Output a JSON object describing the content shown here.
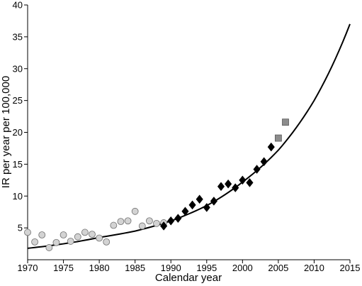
{
  "chart_data": {
    "type": "scatter",
    "xlabel": "Calendar year",
    "ylabel": "IR per year per 100,000",
    "xlim": [
      1970,
      2015
    ],
    "ylim": [
      0,
      40
    ],
    "x_ticks": [
      1970,
      1975,
      1980,
      1985,
      1990,
      1995,
      2000,
      2005,
      2010,
      2015
    ],
    "y_ticks": [
      5,
      10,
      15,
      20,
      25,
      30,
      35,
      40
    ],
    "grid": false,
    "legend": "none",
    "series": [
      {
        "marker": "circle",
        "color": "#d3d3d3",
        "edge_color": "#6e6e6e",
        "points": [
          [
            1970,
            4.3
          ],
          [
            1971,
            2.8
          ],
          [
            1972,
            3.9
          ],
          [
            1973,
            1.9
          ],
          [
            1974,
            2.7
          ],
          [
            1975,
            3.9
          ],
          [
            1976,
            2.9
          ],
          [
            1977,
            3.6
          ],
          [
            1978,
            4.3
          ],
          [
            1979,
            4.0
          ],
          [
            1980,
            3.4
          ],
          [
            1981,
            2.8
          ],
          [
            1982,
            5.4
          ],
          [
            1983,
            6.0
          ],
          [
            1984,
            6.1
          ],
          [
            1985,
            7.6
          ],
          [
            1986,
            5.3
          ],
          [
            1987,
            6.1
          ],
          [
            1988,
            5.7
          ],
          [
            1989,
            5.8
          ]
        ]
      },
      {
        "marker": "diamond",
        "color": "#000000",
        "edge_color": "#000000",
        "points": [
          [
            1989,
            5.3
          ],
          [
            1990,
            6.1
          ],
          [
            1991,
            6.5
          ],
          [
            1992,
            7.6
          ],
          [
            1993,
            8.6
          ],
          [
            1994,
            9.5
          ],
          [
            1995,
            8.2
          ],
          [
            1996,
            9.2
          ],
          [
            1997,
            11.5
          ],
          [
            1998,
            11.9
          ],
          [
            1999,
            11.3
          ],
          [
            2000,
            12.5
          ],
          [
            2001,
            12.1
          ],
          [
            2002,
            14.2
          ],
          [
            2003,
            15.4
          ],
          [
            2004,
            17.7
          ]
        ]
      },
      {
        "marker": "square",
        "color": "#8c8c8c",
        "edge_color": "#5a5a5a",
        "points": [
          [
            2005,
            19.1
          ],
          [
            2006,
            21.6
          ]
        ]
      }
    ],
    "fit_curve": {
      "type": "exponential",
      "color": "#000000",
      "x": [
        1970,
        1975,
        1980,
        1985,
        1990,
        1995,
        2000,
        2005,
        2010,
        2015
      ],
      "y": [
        1.8,
        2.5,
        3.5,
        4.5,
        6.1,
        8.5,
        12.2,
        17.2,
        25.0,
        37.0
      ]
    }
  }
}
